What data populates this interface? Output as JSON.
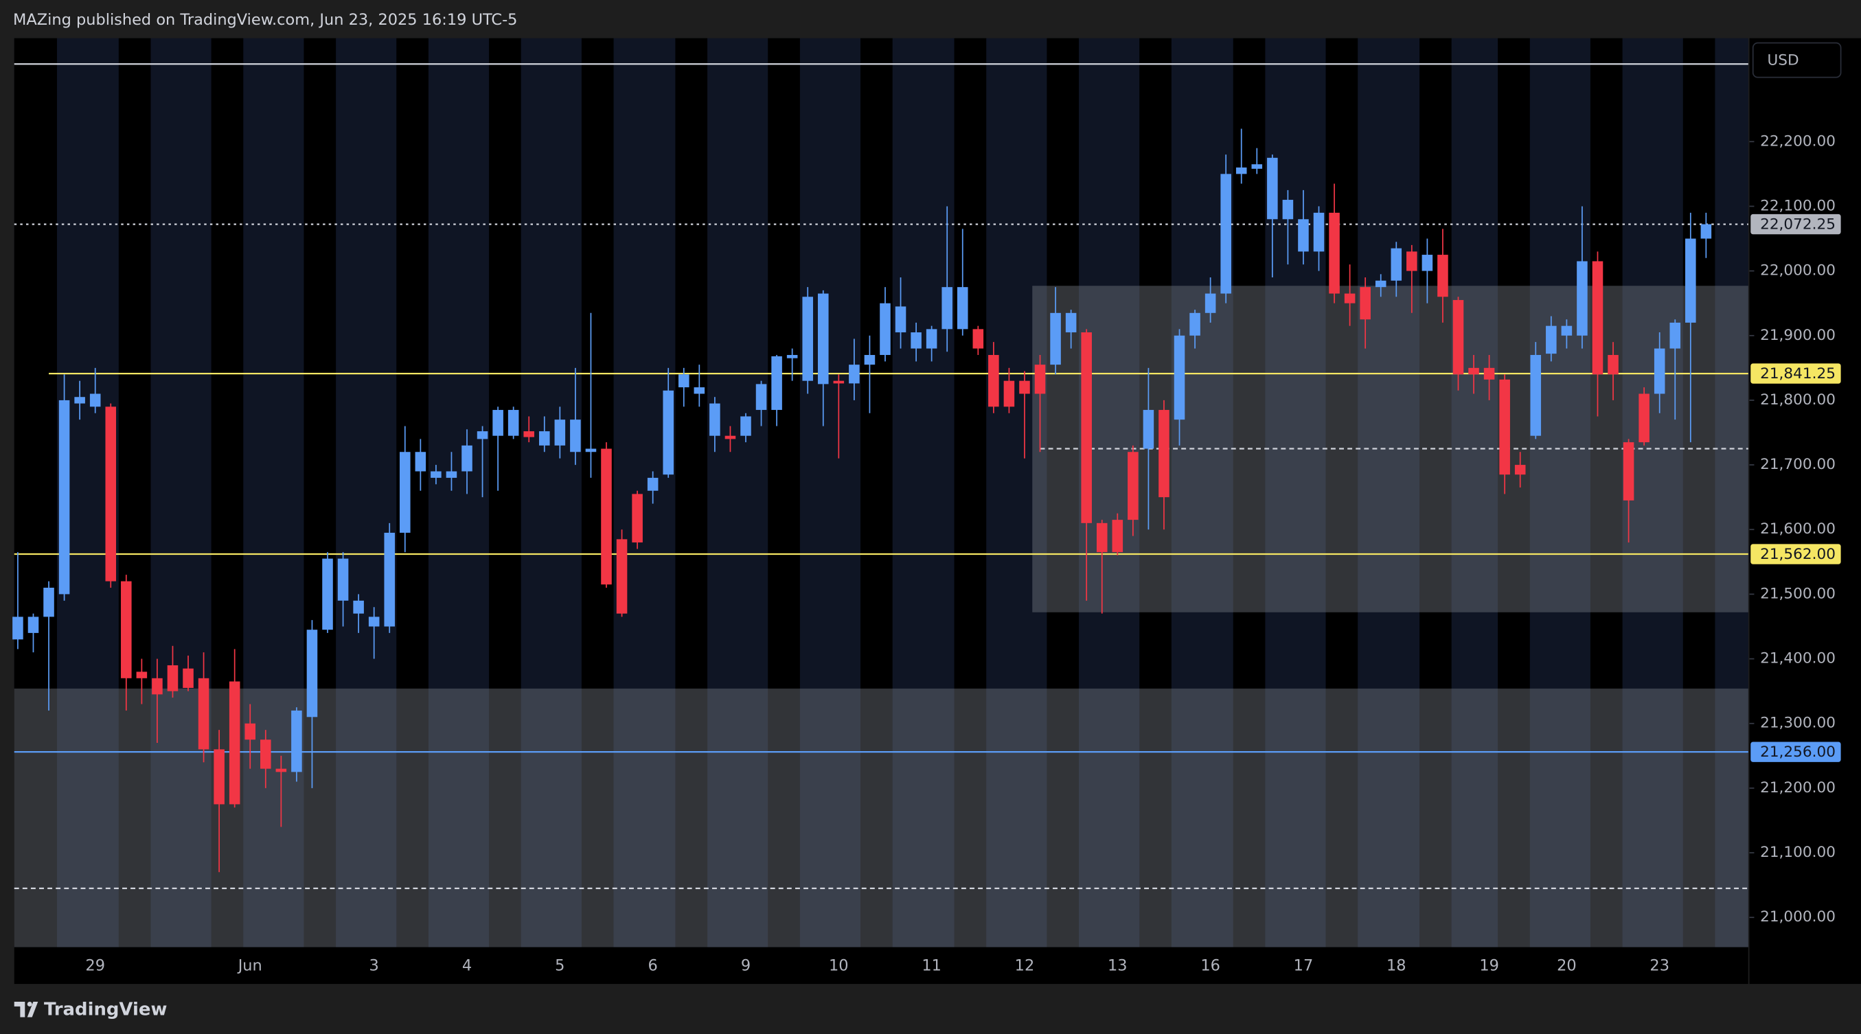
{
  "chart_data": {
    "type": "candlestick",
    "title": "MAZing published on TradingView.com, Jun 23, 2025 16:19 UTC-5",
    "source": "TradingView",
    "currency": "USD",
    "up_color": "#5b9cf6",
    "down_color": "#f23645",
    "grid": false,
    "ylim": [
      20954,
      22360
    ],
    "yticks": [
      {
        "value": 21000,
        "label": "21,000.00"
      },
      {
        "value": 21100,
        "label": "21,100.00"
      },
      {
        "value": 21200,
        "label": "21,200.00"
      },
      {
        "value": 21300,
        "label": "21,300.00"
      },
      {
        "value": 21400,
        "label": "21,400.00"
      },
      {
        "value": 21500,
        "label": "21,500.00"
      },
      {
        "value": 21600,
        "label": "21,600.00"
      },
      {
        "value": 21700,
        "label": "21,700.00"
      },
      {
        "value": 21800,
        "label": "21,800.00"
      },
      {
        "value": 21900,
        "label": "21,900.00"
      },
      {
        "value": 22000,
        "label": "22,000.00"
      },
      {
        "value": 22100,
        "label": "22,100.00"
      },
      {
        "value": 22200,
        "label": "22,200.00"
      }
    ],
    "categories": [
      null,
      null,
      null,
      null,
      null,
      "29",
      null,
      null,
      null,
      null,
      null,
      null,
      null,
      null,
      null,
      "Jun",
      null,
      null,
      null,
      null,
      null,
      null,
      null,
      "3",
      null,
      null,
      null,
      null,
      null,
      "4",
      null,
      null,
      null,
      null,
      null,
      "5",
      null,
      null,
      null,
      null,
      null,
      "6",
      null,
      null,
      null,
      null,
      null,
      "9",
      null,
      null,
      null,
      null,
      null,
      "10",
      null,
      null,
      null,
      null,
      null,
      "11",
      null,
      null,
      null,
      null,
      null,
      "12",
      null,
      null,
      null,
      null,
      null,
      "13",
      null,
      null,
      null,
      null,
      null,
      "16",
      null,
      null,
      null,
      null,
      null,
      "17",
      null,
      null,
      null,
      null,
      null,
      "18",
      null,
      null,
      null,
      null,
      null,
      "19",
      null,
      null,
      null,
      null,
      "20",
      null,
      null,
      null,
      null,
      null,
      "23",
      null,
      null,
      null
    ],
    "open": [
      21430,
      21440,
      21465,
      21500,
      21795,
      21790,
      21790,
      21520,
      21380,
      21370,
      21390,
      21385,
      21370,
      21260,
      21365,
      21300,
      21275,
      21230,
      21225,
      21310,
      21445,
      21490,
      21470,
      21450,
      21450,
      21595,
      21690,
      21680,
      21680,
      21690,
      21740,
      21745,
      21745,
      21752,
      21730,
      21730,
      21720,
      21720,
      21725,
      21585,
      21655,
      21660,
      21685,
      21820,
      21810,
      21745,
      21745,
      21745,
      21785,
      21785,
      21865,
      21830,
      21825,
      21830,
      21826,
      21855,
      21870,
      21905,
      21880,
      21880,
      21910,
      21910,
      21910,
      21870,
      21830,
      21830,
      21855,
      21855,
      21905,
      21905,
      21610,
      21615,
      21720,
      21725,
      21785,
      21770,
      21900,
      21935,
      21965,
      22150,
      22158,
      22080,
      22080,
      22030,
      22030,
      22090,
      21965,
      21975,
      21975,
      21985,
      22030,
      22000,
      22025,
      21955,
      21850,
      21850,
      21832,
      21700,
      21745,
      21872,
      21900,
      21900,
      22015,
      21870,
      21735,
      21810,
      21810,
      21880,
      21920,
      22050
    ],
    "high": [
      21565,
      21470,
      21520,
      21840,
      21830,
      21850,
      21795,
      21530,
      21400,
      21400,
      21420,
      21405,
      21410,
      21290,
      21415,
      21330,
      21290,
      21250,
      21325,
      21460,
      21565,
      21565,
      21500,
      21480,
      21610,
      21760,
      21740,
      21700,
      21720,
      21755,
      21760,
      21790,
      21790,
      21775,
      21775,
      21790,
      21850,
      21935,
      21735,
      21600,
      21660,
      21690,
      21850,
      21850,
      21855,
      21805,
      21760,
      21780,
      21830,
      21870,
      21880,
      21975,
      21970,
      21840,
      21895,
      21900,
      21975,
      21990,
      21920,
      21915,
      22100,
      22065,
      21915,
      21890,
      21850,
      21845,
      21870,
      21975,
      21940,
      21910,
      21615,
      21625,
      21730,
      21850,
      21800,
      21910,
      21940,
      21990,
      22180,
      22220,
      22190,
      22180,
      22125,
      22125,
      22100,
      22135,
      22010,
      21990,
      21995,
      22045,
      22040,
      22050,
      22065,
      21960,
      21870,
      21870,
      21840,
      21720,
      21890,
      21930,
      21925,
      22100,
      22030,
      21890,
      21740,
      21820,
      21905,
      21925,
      22090,
      22090
    ],
    "low": [
      21415,
      21410,
      21320,
      21490,
      21770,
      21780,
      21510,
      21320,
      21330,
      21270,
      21340,
      21350,
      21240,
      21070,
      21170,
      21230,
      21200,
      21140,
      21210,
      21200,
      21440,
      21450,
      21440,
      21400,
      21440,
      21565,
      21660,
      21670,
      21660,
      21655,
      21650,
      21660,
      21740,
      21735,
      21720,
      21710,
      21700,
      21680,
      21510,
      21465,
      21570,
      21640,
      21680,
      21790,
      21790,
      21720,
      21720,
      21735,
      21760,
      21760,
      21830,
      21810,
      21760,
      21710,
      21800,
      21780,
      21860,
      21880,
      21860,
      21860,
      21875,
      21900,
      21870,
      21780,
      21780,
      21710,
      21720,
      21840,
      21880,
      21490,
      21470,
      21560,
      21590,
      21600,
      21600,
      21730,
      21880,
      21920,
      21950,
      22135,
      22150,
      21990,
      22010,
      22010,
      22000,
      21950,
      21915,
      21880,
      21960,
      21960,
      21935,
      21950,
      21920,
      21815,
      21810,
      21800,
      21655,
      21665,
      21740,
      21860,
      21880,
      21880,
      21775,
      21800,
      21580,
      21730,
      21780,
      21770,
      21735,
      22020
    ],
    "close": [
      21465,
      21465,
      21510,
      21800,
      21805,
      21810,
      21520,
      21370,
      21370,
      21345,
      21350,
      21355,
      21260,
      21175,
      21175,
      21275,
      21230,
      21225,
      21320,
      21445,
      21555,
      21555,
      21490,
      21465,
      21595,
      21720,
      21720,
      21690,
      21690,
      21730,
      21752,
      21785,
      21785,
      21743,
      21752,
      21770,
      21770,
      21725,
      21515,
      21470,
      21580,
      21680,
      21815,
      21840,
      21820,
      21795,
      21740,
      21775,
      21825,
      21868,
      21870,
      21960,
      21965,
      21826,
      21855,
      21870,
      21950,
      21945,
      21905,
      21910,
      21975,
      21975,
      21880,
      21790,
      21790,
      21810,
      21810,
      21935,
      21935,
      21610,
      21565,
      21565,
      21615,
      21785,
      21650,
      21900,
      21935,
      21965,
      22150,
      22160,
      22165,
      22175,
      22110,
      22080,
      22090,
      21965,
      21950,
      21925,
      21985,
      22035,
      22000,
      22025,
      21960,
      21840,
      21840,
      21832,
      21685,
      21685,
      21870,
      21915,
      21915,
      22015,
      21840,
      21840,
      21645,
      21735,
      21880,
      21920,
      22050,
      22072.25
    ],
    "last_price_label": "22,072.25",
    "levels": [
      {
        "value": 22320,
        "color": "#d1d4dc",
        "style": "solid"
      },
      {
        "value": 21841.25,
        "label": "21,841.25",
        "color": "#f5e663",
        "style": "solid",
        "start": 2
      },
      {
        "value": 21562,
        "label": "21,562.00",
        "color": "#f5e663",
        "style": "solid"
      },
      {
        "value": 21256,
        "label": "21,256.00",
        "color": "#5b9cf6",
        "style": "solid"
      },
      {
        "value": 21725,
        "color": "#d1d4dc",
        "style": "dashed",
        "start": 66
      },
      {
        "value": 21045,
        "color": "#d1d4dc",
        "style": "dashed"
      }
    ],
    "zones": [
      {
        "high": 21977,
        "low": 21472,
        "start": 66
      },
      {
        "high": 21354,
        "low": 20954
      }
    ]
  }
}
